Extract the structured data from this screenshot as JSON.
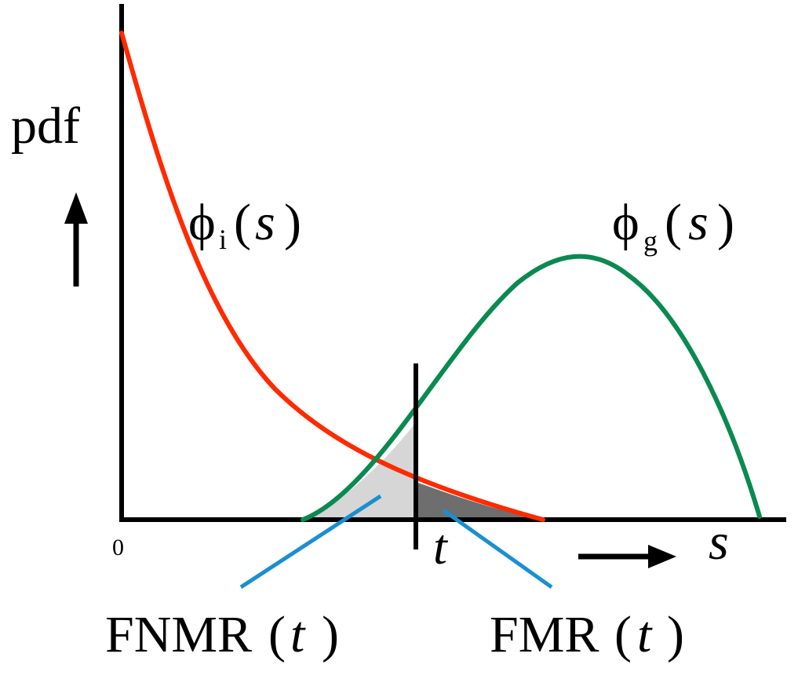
{
  "diagram": {
    "y_axis_label": "pdf",
    "x_axis_label": "s",
    "origin_label": "0",
    "threshold_label": "t",
    "impostor_curve": {
      "symbol": "ϕ",
      "subscript": "i",
      "open_paren": "(",
      "var": "s",
      "close_paren": ")",
      "color": "#ff2a00"
    },
    "genuine_curve": {
      "symbol": "ϕ",
      "subscript": "g",
      "open_paren": "(",
      "var": "s",
      "close_paren": ")",
      "color": "#0a8a50"
    },
    "fnmr_label": {
      "name": "FNMR",
      "open_paren": "(",
      "var": "t",
      "close_paren": ")"
    },
    "fmr_label": {
      "name": "FMR",
      "open_paren": "(",
      "var": "t",
      "close_paren": ")"
    },
    "colors": {
      "axis": "#000000",
      "fnmr_region": "#d6d6d6",
      "fmr_region": "#6e6e6e",
      "leader_lines": "#1a8fd0"
    }
  }
}
